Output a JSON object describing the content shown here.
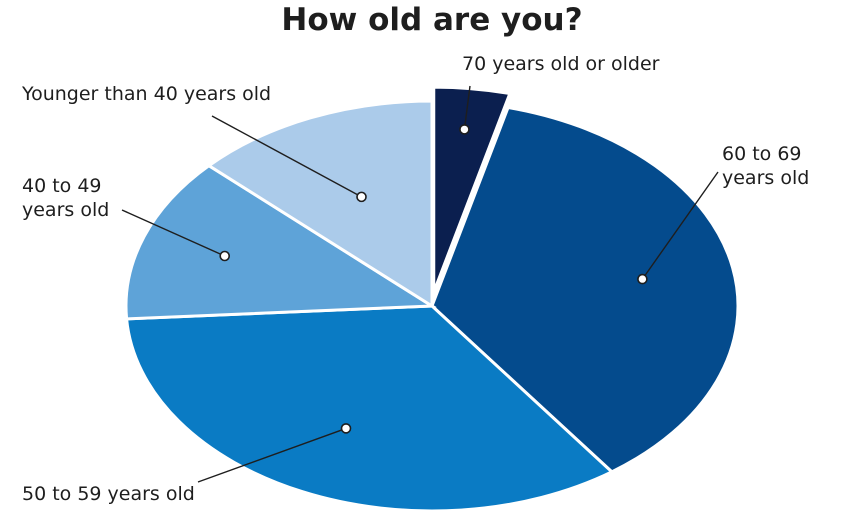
{
  "chart_data": {
    "type": "pie",
    "title": "How old are you?",
    "categories": [
      "70 years old or older",
      "60 to 69 years old",
      "50 to 59 years old",
      "40 to 49 years old",
      "Younger than 40 years old"
    ],
    "values": [
      4,
      36,
      34,
      13,
      13
    ],
    "unit": "%",
    "colors": [
      "#0b1f4f",
      "#044b8d",
      "#0a7bc4",
      "#5ea3d8",
      "#abcbea"
    ],
    "legend": "none"
  }
}
